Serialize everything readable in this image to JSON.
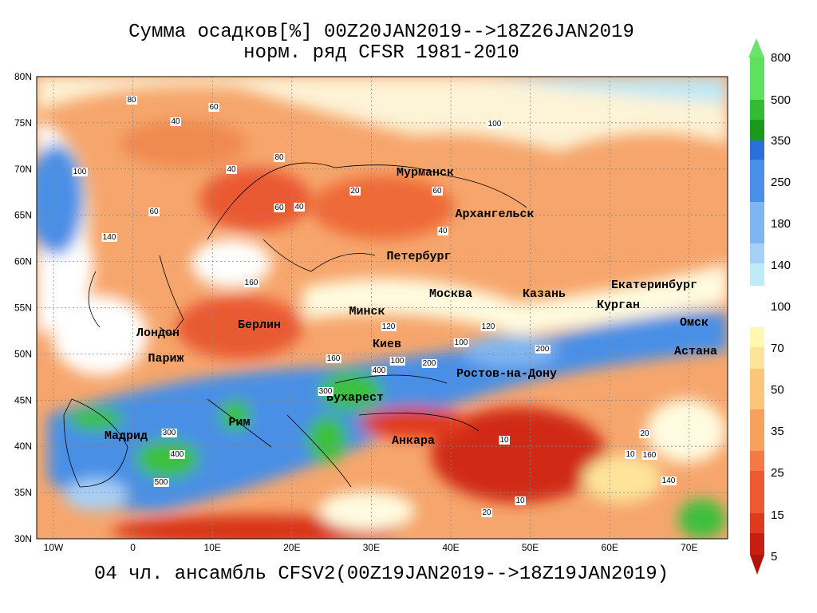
{
  "header": {
    "title": "Сумма осадков[%] 00Z20JAN2019-->18Z26JAN2019",
    "subtitle": "норм. ряд CFSR 1981-2010"
  },
  "footer": "04 чл. ансамбль CFSV2(00Z19JAN2019-->18Z19JAN2019)",
  "lat_labels": [
    "80N",
    "75N",
    "70N",
    "65N",
    "60N",
    "55N",
    "50N",
    "45N",
    "40N",
    "35N",
    "30N"
  ],
  "lon_labels": [
    "10W",
    "0",
    "10E",
    "20E",
    "30E",
    "40E",
    "50E",
    "60E",
    "70E"
  ],
  "cities": [
    "Мурманск",
    "Архангельск",
    "Петербург",
    "Москва",
    "Казань",
    "Екатеринбург",
    "Курган",
    "Омск",
    "Астана",
    "Минск",
    "Киев",
    "Берлин",
    "Лондон",
    "Париж",
    "Ростов-на-Дону",
    "Бухарест",
    "Рим",
    "Мадрид",
    "Анкара"
  ],
  "contour_labels": [
    40,
    80,
    60,
    100,
    40,
    80,
    60,
    100,
    60,
    40,
    20,
    40,
    60,
    160,
    140,
    120,
    100,
    160,
    200,
    120,
    200,
    300,
    400,
    500,
    300,
    400,
    10,
    20,
    10,
    10,
    20,
    140,
    160,
    100
  ],
  "colorbar": [
    800,
    500,
    350,
    250,
    180,
    140,
    100,
    70,
    50,
    35,
    25,
    15,
    5
  ]
}
